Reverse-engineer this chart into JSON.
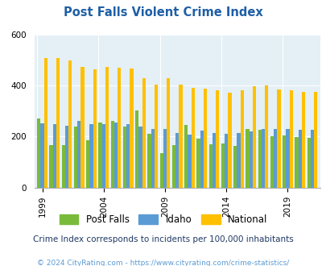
{
  "title": "Post Falls Violent Crime Index",
  "years": [
    1999,
    2000,
    2001,
    2002,
    2003,
    2004,
    2005,
    2006,
    2007,
    2008,
    2009,
    2010,
    2011,
    2012,
    2013,
    2014,
    2015,
    2016,
    2017,
    2018,
    2019,
    2020,
    2021
  ],
  "post_falls": [
    270,
    168,
    165,
    238,
    185,
    255,
    260,
    238,
    303,
    210,
    135,
    168,
    245,
    191,
    169,
    172,
    164,
    230,
    226,
    202,
    203,
    197,
    194
  ],
  "idaho": [
    252,
    248,
    243,
    260,
    248,
    248,
    255,
    248,
    238,
    230,
    230,
    215,
    208,
    224,
    215,
    210,
    215,
    220,
    230,
    230,
    230,
    225,
    225
  ],
  "national": [
    507,
    507,
    498,
    472,
    465,
    472,
    469,
    468,
    430,
    405,
    430,
    405,
    390,
    388,
    380,
    373,
    383,
    397,
    399,
    385,
    380,
    375,
    375
  ],
  "post_falls_color": "#7aba3a",
  "idaho_color": "#5b9bd5",
  "national_color": "#ffc000",
  "bg_color": "#e4f0f5",
  "ylim": [
    0,
    600
  ],
  "yticks": [
    0,
    200,
    400,
    600
  ],
  "xlabel_ticks": [
    1999,
    2004,
    2009,
    2014,
    2019
  ],
  "subtitle": "Crime Index corresponds to incidents per 100,000 inhabitants",
  "footer": "© 2024 CityRating.com - https://www.cityrating.com/crime-statistics/",
  "title_color": "#1f5fa6",
  "subtitle_color": "#1f3864",
  "footer_color": "#5b9bd5"
}
